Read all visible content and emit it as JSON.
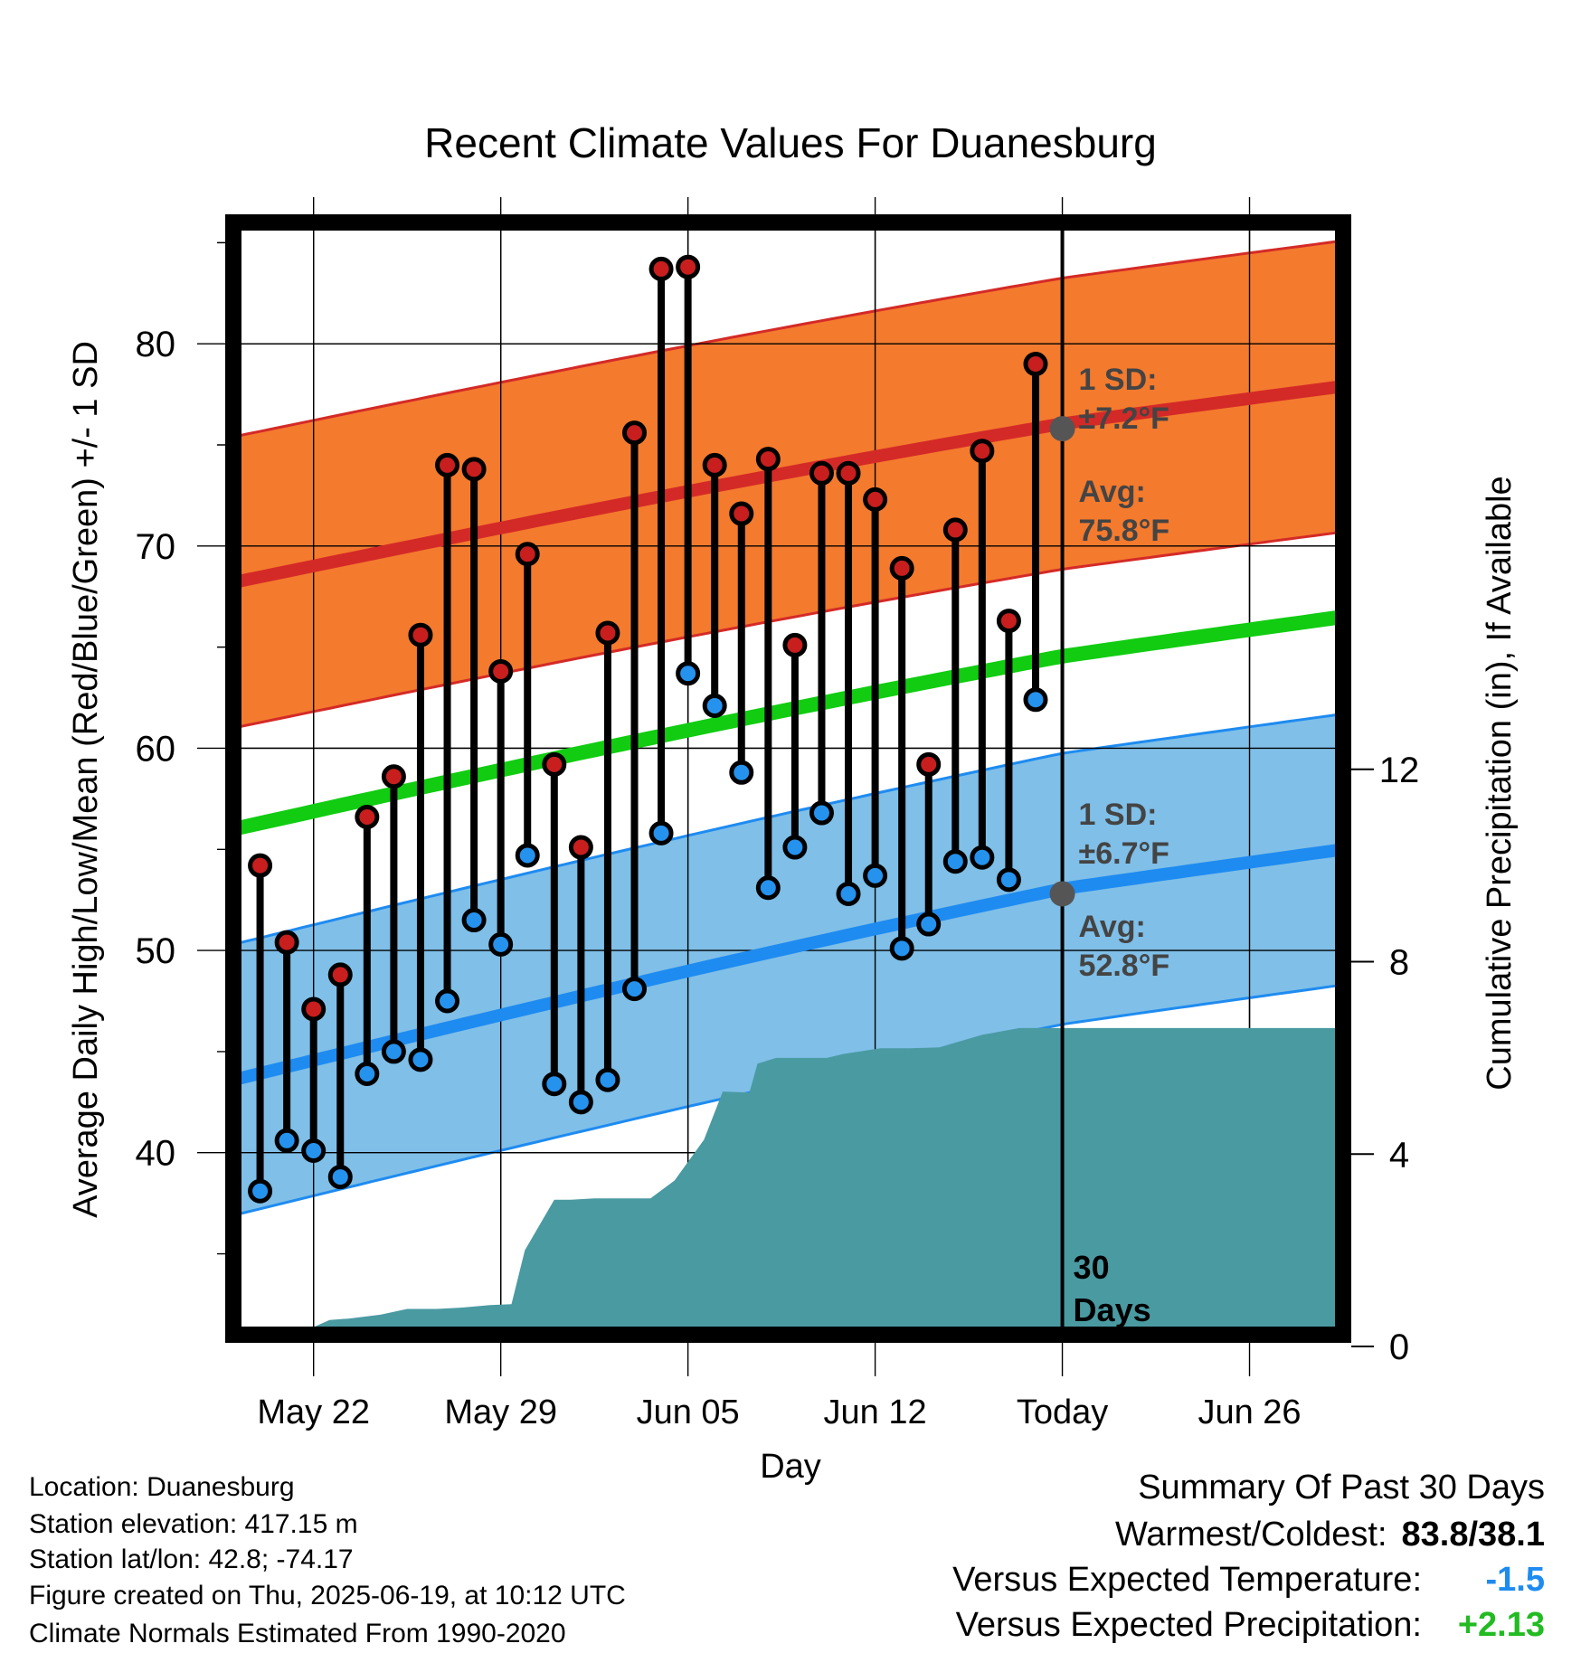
{
  "chart_data": {
    "type": "line",
    "title": "Recent Climate Values For Duanesburg",
    "xlabel": "Day",
    "ylabel": "Average Daily High/Low/Mean (Red/Blue/Green) +/- 1 SD",
    "y2label": "Cumulative Precipitation (in), If Available",
    "x_ticks": [
      "May 22",
      "May 29",
      "Jun 05",
      "Jun 12",
      "Today",
      "Jun 26"
    ],
    "x_tick_day": [
      3,
      10,
      17,
      24,
      31,
      38
    ],
    "xlim_day": [
      0,
      41.5
    ],
    "y_ticks": [
      "40",
      "50",
      "60",
      "70",
      "80"
    ],
    "ylim": [
      31,
      86
    ],
    "y2_ticks": [
      "0",
      "4",
      "8",
      "12"
    ],
    "y2lim": [
      0,
      24.5
    ],
    "grid": true,
    "colors": {
      "high_band": "#f47a2e",
      "high_line": "#d42a27",
      "low_band": "#7fbfe8",
      "low_line": "#1e8bf0",
      "mean_line": "#11cc11",
      "precip": "#4a9aa2",
      "high_dot": "#c81e1e",
      "low_dot": "#2592ee",
      "marker": "#555555"
    },
    "normals": {
      "day": [
        0,
        31,
        41.5
      ],
      "high_mean": [
        68.2,
        75.8,
        77.9
      ],
      "high_sd": 7.2,
      "low_mean": [
        43.6,
        52.8,
        55.0
      ],
      "low_sd": 6.7,
      "avg_mean": [
        56.0,
        64.3,
        66.5
      ]
    },
    "series": [
      {
        "name": "High",
        "day": [
          1,
          2,
          3,
          4,
          5,
          6,
          7,
          8,
          9,
          10,
          11,
          12,
          13,
          14,
          15,
          16,
          17,
          18,
          19,
          20,
          21,
          22,
          23,
          24,
          25,
          26,
          27,
          28,
          29,
          30
        ],
        "values": [
          54.2,
          50.4,
          47.1,
          48.8,
          56.6,
          58.6,
          65.6,
          74.0,
          73.8,
          63.8,
          69.6,
          59.2,
          55.1,
          65.7,
          75.6,
          83.7,
          83.8,
          74.0,
          71.6,
          74.3,
          65.1,
          73.6,
          73.6,
          72.3,
          68.9,
          59.2,
          70.8,
          74.7,
          66.3,
          79.0
        ]
      },
      {
        "name": "Low",
        "day": [
          1,
          2,
          3,
          4,
          5,
          6,
          7,
          8,
          9,
          10,
          11,
          12,
          13,
          14,
          15,
          16,
          17,
          18,
          19,
          20,
          21,
          22,
          23,
          24,
          25,
          26,
          27,
          28,
          29,
          30
        ],
        "values": [
          38.1,
          40.6,
          40.1,
          38.8,
          43.9,
          45.0,
          44.6,
          47.5,
          51.5,
          50.3,
          54.7,
          43.4,
          42.5,
          43.6,
          48.1,
          55.8,
          63.7,
          62.1,
          58.8,
          53.1,
          55.1,
          56.8,
          52.8,
          53.7,
          50.1,
          51.3,
          54.4,
          54.6,
          53.5,
          62.4
        ]
      },
      {
        "name": "Cumulative Precipitation",
        "axis": "y2",
        "day": [
          1.6,
          2.5,
          3.6,
          4.3,
          5.5,
          6.5,
          7.6,
          8.6,
          9.6,
          10.4,
          10.9,
          12.0,
          12.6,
          13.5,
          14.8,
          15.6,
          16.5,
          17.6,
          18.3,
          19.3,
          19.6,
          20.3,
          21.1,
          22.2,
          22.8,
          24.2,
          25.3,
          26.4,
          28.0,
          29.4,
          30.0,
          41.5
        ],
        "values": [
          0.0,
          0.28,
          0.55,
          0.58,
          0.66,
          0.78,
          0.78,
          0.81,
          0.86,
          0.88,
          2.0,
          3.05,
          3.05,
          3.08,
          3.08,
          3.08,
          3.45,
          4.3,
          5.3,
          5.28,
          5.88,
          6.0,
          6.0,
          6.0,
          6.08,
          6.2,
          6.2,
          6.22,
          6.48,
          6.62,
          6.62,
          6.62
        ]
      }
    ],
    "today_day": 31,
    "today_label_lines": [
      "30",
      "Days"
    ],
    "high_annotations": {
      "sd_label": "1 SD:",
      "sd_value": "±7.2°F",
      "avg_label": "Avg:",
      "avg_value": "75.8°F"
    },
    "low_annotations": {
      "sd_label": "1 SD:",
      "sd_value": "±6.7°F",
      "avg_label": "Avg:",
      "avg_value": "52.8°F"
    }
  },
  "station_info": [
    "Location: Duanesburg",
    "Station elevation: 417.15 m",
    "Station lat/lon: 42.8; -74.17",
    "Figure created on Thu, 2025-06-19, at 10:12 UTC",
    "Climate Normals Estimated From 1990-2020"
  ],
  "summary": {
    "title": "Summary Of Past 30 Days",
    "warmest_coldest_label": "Warmest/Coldest:",
    "warmest_coldest_value": "83.8/38.1",
    "temp_label": "Versus Expected Temperature:",
    "temp_value": "-1.5",
    "temp_color": "#1e8bf0",
    "precip_label": "Versus Expected Precipitation:",
    "precip_value": "+2.13",
    "precip_color": "#22bb22"
  }
}
